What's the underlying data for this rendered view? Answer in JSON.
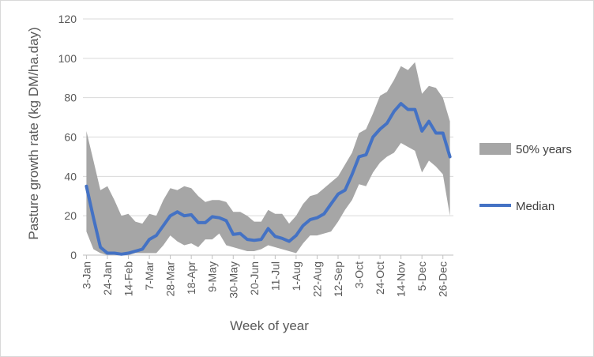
{
  "chart_data": {
    "type": "area",
    "title": "",
    "xlabel": "Week of year",
    "ylabel": "Pasture growth rate (kg DM/ha.day)",
    "ylim": [
      0,
      120
    ],
    "yticks": [
      0,
      20,
      40,
      60,
      80,
      100,
      120
    ],
    "grid": true,
    "legend_position": "right",
    "x_tick_labels": [
      "3-Jan",
      "24-Jan",
      "14-Feb",
      "7-Mar",
      "28-Mar",
      "18-Apr",
      "9-May",
      "30-May",
      "20-Jun",
      "11-Jul",
      "1-Aug",
      "22-Aug",
      "12-Sep",
      "3-Oct",
      "24-Oct",
      "14-Nov",
      "5-Dec",
      "26-Dec"
    ],
    "x_tick_every_n_weeks": 3,
    "weeks": 52,
    "series": [
      {
        "name": "50% years",
        "kind": "band",
        "color": "#a6a6a6",
        "upper": [
          63,
          48,
          33,
          35,
          28,
          20,
          21,
          17,
          16,
          21,
          20,
          28,
          34,
          33,
          35,
          34,
          30,
          27,
          28,
          28,
          27,
          22,
          22,
          20,
          17,
          17,
          23,
          21,
          21,
          16,
          20,
          26,
          30,
          31,
          34,
          37,
          40,
          46,
          52,
          62,
          64,
          72,
          81,
          83,
          89,
          96,
          94,
          98,
          82,
          86,
          85,
          80,
          68
        ],
        "lower": [
          12,
          3,
          1,
          0,
          0,
          0,
          0,
          1,
          1,
          1,
          1,
          5,
          10,
          7,
          5,
          6,
          4,
          8,
          8,
          11,
          5,
          4,
          3,
          2,
          2,
          3,
          5,
          4,
          3,
          2,
          1,
          6,
          10,
          10,
          11,
          12,
          17,
          23,
          28,
          36,
          35,
          42,
          47,
          50,
          52,
          57,
          55,
          53,
          42,
          48,
          45,
          41,
          20
        ]
      },
      {
        "name": "Median",
        "kind": "line",
        "color": "#4472c4",
        "values": [
          35,
          19,
          4,
          1,
          1,
          0.5,
          1,
          2,
          3,
          8,
          10,
          15,
          20,
          22,
          20,
          20.5,
          16.5,
          16.5,
          19.5,
          19,
          17.5,
          10.5,
          11,
          8,
          7.5,
          8,
          13.5,
          9.5,
          8.5,
          7,
          10,
          15,
          18,
          19,
          21,
          26,
          31,
          33,
          41,
          50,
          51,
          60,
          64,
          67,
          73,
          77,
          74,
          74,
          63,
          68,
          62,
          62,
          50
        ]
      }
    ]
  }
}
